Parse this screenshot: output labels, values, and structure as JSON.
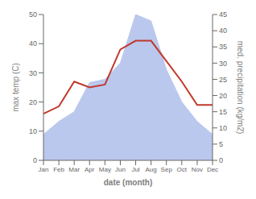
{
  "chart_data": {
    "type": "line",
    "categories": [
      "Jan",
      "Feb",
      "Mar",
      "Apr",
      "May",
      "Jun",
      "Jul",
      "Aug",
      "Sep",
      "Oct",
      "Nov",
      "Dec"
    ],
    "series": [
      {
        "type": "area",
        "axis": "y2",
        "color": "#bbc8ee",
        "values": [
          8,
          12,
          15,
          24,
          25,
          30,
          45,
          43,
          28,
          18,
          12,
          8
        ]
      },
      {
        "type": "line",
        "color": "#c0392b",
        "values": [
          16,
          18.5,
          27,
          25,
          26,
          38,
          41,
          41,
          34,
          27,
          19,
          19
        ]
      }
    ],
    "x_label": "date (month)",
    "y_label": "max temp (C)",
    "y2_label": "med. precipitation (kg/m2)",
    "ylim": [
      0,
      50
    ],
    "yticks": [
      0,
      10,
      20,
      30,
      40,
      50
    ],
    "y2lim": [
      0,
      45
    ],
    "y2ticks": [
      0,
      5,
      10,
      15,
      20,
      25,
      30,
      35,
      40,
      45
    ],
    "grid": false
  }
}
